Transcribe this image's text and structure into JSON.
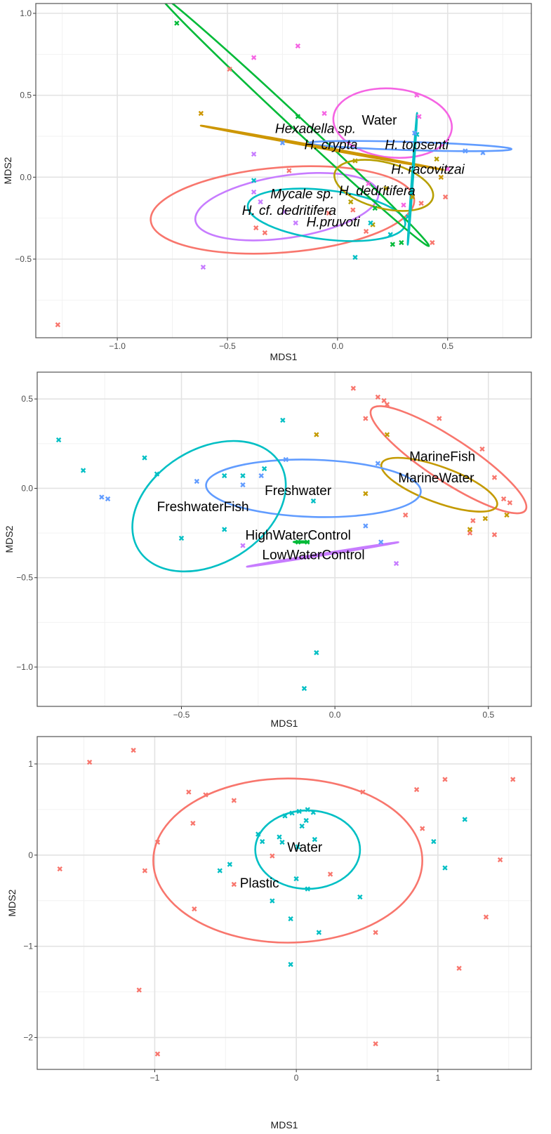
{
  "colors": {
    "panel_border": "#555555",
    "grid_major": "#e3e3e3",
    "grid_minor": "#f2f2f2",
    "red": "#F8766D",
    "olive": "#B79F00",
    "mustard": "#C49A00",
    "green": "#00BA38",
    "teal": "#00BFC4",
    "blue": "#619CFF",
    "purple": "#C77CFF",
    "pink": "#F564E3",
    "orange": "#CD9600"
  },
  "marker_glyph": "✖",
  "chart_data": [
    {
      "type": "scatter",
      "xlabel": "MDS1",
      "ylabel": "MDS2",
      "xlim": [
        -1.37,
        0.88
      ],
      "ylim": [
        -0.98,
        1.06
      ],
      "xticks": [
        -1.0,
        -0.5,
        0.0,
        0.5
      ],
      "xtick_labels": [
        "−1.0",
        "−0.5",
        "0.0",
        "0.5"
      ],
      "yticks": [
        -0.5,
        0.0,
        0.5,
        1.0
      ],
      "ytick_labels": [
        "−0.5",
        "0.0",
        "0.5",
        "1.0"
      ],
      "grid": true,
      "labels": [
        {
          "text": "Water",
          "x": 0.19,
          "y": 0.35,
          "italic": false
        },
        {
          "text": "Hexadella sp.",
          "x": -0.1,
          "y": 0.3,
          "italic": true
        },
        {
          "text": "H. crypta",
          "x": -0.03,
          "y": 0.2,
          "italic": true
        },
        {
          "text": "H. topsenti",
          "x": 0.36,
          "y": 0.2,
          "italic": true
        },
        {
          "text": "H. racovitzai",
          "x": 0.41,
          "y": 0.05,
          "italic": true
        },
        {
          "text": "H. dedritifera",
          "x": 0.18,
          "y": -0.08,
          "italic": true
        },
        {
          "text": "Mycale sp.",
          "x": -0.16,
          "y": -0.1,
          "italic": true
        },
        {
          "text": "H. cf. dedritifera",
          "x": -0.22,
          "y": -0.2,
          "italic": true
        },
        {
          "text": "H.pruvoti",
          "x": -0.02,
          "y": -0.27,
          "italic": true
        }
      ],
      "ellipses": [
        {
          "color": "red",
          "cx": -0.25,
          "cy": -0.2,
          "rx": 0.6,
          "ry": 0.26,
          "angle": 0.08
        },
        {
          "color": "purple",
          "cx": -0.23,
          "cy": -0.18,
          "rx": 0.42,
          "ry": 0.19,
          "angle": 0.15
        },
        {
          "color": "teal",
          "cx": -0.05,
          "cy": -0.23,
          "rx": 0.36,
          "ry": 0.15,
          "angle": -0.12
        },
        {
          "color": "green",
          "cx": -0.2,
          "cy": 0.35,
          "rx": 0.84,
          "ry": 0.038,
          "angle": -0.75
        },
        {
          "color": "olive",
          "cx": 0.21,
          "cy": -0.05,
          "rx": 0.23,
          "ry": 0.14,
          "angle": -0.25
        },
        {
          "color": "pink",
          "cx": 0.25,
          "cy": 0.33,
          "rx": 0.27,
          "ry": 0.21,
          "angle": -0.1
        },
        {
          "color": "blue",
          "cx": 0.33,
          "cy": 0.19,
          "rx": 0.46,
          "ry": 0.025,
          "angle": -0.03
        },
        {
          "color": "orange",
          "cx": -0.07,
          "cy": 0.18,
          "rx": 0.56,
          "ry": 0.005,
          "angle": -0.18
        },
        {
          "color": "teal",
          "cx": 0.34,
          "cy": -0.01,
          "rx": 0.3,
          "ry": 0.004,
          "angle": 1.5
        }
      ],
      "series": [
        {
          "color": "red",
          "x": [
            -1.27,
            -0.49,
            -0.22,
            -0.33,
            -0.37,
            -0.04,
            0.43,
            0.49,
            0.38,
            0.13,
            0.07
          ],
          "y": [
            -0.9,
            0.66,
            0.04,
            -0.34,
            -0.31,
            -0.22,
            -0.4,
            -0.12,
            -0.16,
            -0.33,
            -0.2
          ]
        },
        {
          "color": "olive",
          "x": [
            0.45,
            0.34,
            0.22,
            0.08,
            0.06,
            0.16
          ],
          "y": [
            0.11,
            -0.12,
            -0.07,
            0.1,
            -0.15,
            -0.29
          ]
        },
        {
          "color": "orange",
          "x": [
            -0.62,
            0.47
          ],
          "y": [
            0.39,
            0.0
          ]
        },
        {
          "color": "green",
          "x": [
            -0.73,
            -0.18,
            0.25,
            0.29,
            0.17
          ],
          "y": [
            0.94,
            0.37,
            -0.41,
            -0.4,
            -0.19
          ]
        },
        {
          "color": "teal",
          "x": [
            -0.38,
            0.08,
            0.32,
            0.36,
            0.24,
            0.15
          ],
          "y": [
            -0.02,
            -0.49,
            -0.24,
            0.26,
            -0.35,
            -0.28
          ]
        },
        {
          "color": "blue",
          "x": [
            -0.25,
            0.58,
            0.66,
            0.35
          ],
          "y": [
            0.21,
            0.16,
            0.15,
            0.27
          ]
        },
        {
          "color": "purple",
          "x": [
            -0.61,
            -0.38,
            -0.38,
            -0.35,
            -0.24,
            -0.19
          ],
          "y": [
            -0.55,
            0.14,
            -0.09,
            -0.15,
            -0.21,
            -0.28
          ]
        },
        {
          "color": "pink",
          "x": [
            -0.38,
            -0.18,
            -0.06,
            0.36,
            0.37,
            0.5,
            0.3,
            0.14
          ],
          "y": [
            0.73,
            0.8,
            0.39,
            0.5,
            0.37,
            0.05,
            -0.17,
            -0.04
          ]
        }
      ]
    },
    {
      "type": "scatter",
      "xlabel": "MDS1",
      "ylabel": "MDS2",
      "xlim": [
        -0.97,
        0.64
      ],
      "ylim": [
        -1.22,
        0.65
      ],
      "xticks": [
        -0.5,
        0.0,
        0.5
      ],
      "xtick_labels": [
        "−0.5",
        "0.0",
        "0.5"
      ],
      "yticks": [
        -1.0,
        -0.5,
        0.0,
        0.5
      ],
      "ytick_labels": [
        "−1.0",
        "−0.5",
        "0.0",
        "0.5"
      ],
      "grid": true,
      "labels": [
        {
          "text": "MarineFish",
          "x": 0.35,
          "y": 0.18,
          "italic": false
        },
        {
          "text": "MarineWater",
          "x": 0.33,
          "y": 0.06,
          "italic": false
        },
        {
          "text": "Freshwater",
          "x": -0.12,
          "y": -0.01,
          "italic": false
        },
        {
          "text": "FreshwaterFish",
          "x": -0.43,
          "y": -0.1,
          "italic": false
        },
        {
          "text": "HighWaterControl",
          "x": -0.12,
          "y": -0.26,
          "italic": false
        },
        {
          "text": "LowWaterControl",
          "x": -0.07,
          "y": -0.37,
          "italic": false
        }
      ],
      "ellipses": [
        {
          "color": "red",
          "cx": 0.37,
          "cy": 0.16,
          "rx": 0.3,
          "ry": 0.12,
          "angle": -0.58
        },
        {
          "color": "mustard",
          "cx": 0.34,
          "cy": 0.02,
          "rx": 0.2,
          "ry": 0.1,
          "angle": -0.35
        },
        {
          "color": "blue",
          "cx": -0.07,
          "cy": 0.0,
          "rx": 0.35,
          "ry": 0.16,
          "angle": -0.03
        },
        {
          "color": "teal",
          "cx": -0.41,
          "cy": -0.1,
          "rx": 0.27,
          "ry": 0.32,
          "angle": 0.55
        },
        {
          "color": "purple",
          "cx": -0.04,
          "cy": -0.37,
          "rx": 0.25,
          "ry": 0.005,
          "angle": 0.16
        },
        {
          "color": "green",
          "cx": -0.11,
          "cy": -0.3,
          "rx": 0.025,
          "ry": 0.004,
          "angle": 0.0
        }
      ],
      "series": [
        {
          "color": "red",
          "x": [
            0.06,
            0.1,
            0.14,
            0.16,
            0.17,
            0.34,
            0.48,
            0.52,
            0.55,
            0.57,
            0.52,
            0.44,
            0.45,
            0.23
          ],
          "y": [
            0.56,
            0.39,
            0.51,
            0.49,
            0.47,
            0.39,
            0.22,
            0.06,
            -0.06,
            -0.08,
            -0.26,
            -0.25,
            -0.18,
            -0.15
          ]
        },
        {
          "color": "mustard",
          "x": [
            0.17,
            -0.06,
            0.1,
            0.44,
            0.49,
            0.56
          ],
          "y": [
            0.3,
            0.3,
            -0.03,
            -0.23,
            -0.17,
            -0.15
          ]
        },
        {
          "color": "teal",
          "x": [
            -0.9,
            -0.82,
            -0.62,
            -0.58,
            -0.5,
            -0.36,
            -0.36,
            -0.07,
            -0.06,
            -0.1,
            -0.17,
            -0.23,
            -0.3
          ],
          "y": [
            0.27,
            0.1,
            0.17,
            0.08,
            -0.28,
            -0.23,
            0.07,
            -0.07,
            -0.92,
            -1.12,
            0.38,
            0.11,
            0.07
          ]
        },
        {
          "color": "blue",
          "x": [
            -0.76,
            -0.74,
            -0.45,
            -0.3,
            -0.24,
            -0.16,
            0.1,
            0.14,
            0.15
          ],
          "y": [
            -0.05,
            -0.06,
            0.04,
            0.02,
            0.07,
            0.16,
            -0.21,
            0.14,
            -0.3
          ]
        },
        {
          "color": "purple",
          "x": [
            -0.3,
            0.2
          ],
          "y": [
            -0.32,
            -0.42
          ]
        },
        {
          "color": "green",
          "x": [
            -0.12,
            -0.09
          ],
          "y": [
            -0.3,
            -0.3
          ]
        }
      ]
    },
    {
      "type": "scatter",
      "xlabel": "MDS1",
      "ylabel": "MDS2",
      "xlim": [
        -1.83,
        1.66
      ],
      "ylim": [
        -2.35,
        1.3
      ],
      "xticks": [
        -1,
        0,
        1
      ],
      "xtick_labels": [
        "−1",
        "0",
        "1"
      ],
      "yticks": [
        -2,
        -1,
        0,
        1
      ],
      "ytick_labels": [
        "−2",
        "−1",
        "0",
        "1"
      ],
      "grid": true,
      "labels": [
        {
          "text": "Water",
          "x": 0.06,
          "y": 0.09,
          "italic": false
        },
        {
          "text": "Plastic",
          "x": -0.26,
          "y": -0.3,
          "italic": false
        }
      ],
      "ellipses": [
        {
          "color": "red",
          "cx": -0.06,
          "cy": -0.06,
          "rx": 0.95,
          "ry": 0.9,
          "angle": 0.0
        },
        {
          "color": "teal",
          "cx": 0.08,
          "cy": 0.06,
          "rx": 0.37,
          "ry": 0.43,
          "angle": 0.0
        }
      ],
      "series": [
        {
          "color": "red",
          "x": [
            -1.67,
            -1.46,
            -1.15,
            -0.76,
            -0.64,
            -0.44,
            -0.73,
            -0.98,
            -1.07,
            -0.72,
            -0.44,
            -0.17,
            0.24,
            0.47,
            0.85,
            0.89,
            1.05,
            1.53,
            0.56,
            1.44,
            1.34,
            1.15,
            0.56,
            -1.11,
            -0.98
          ],
          "y": [
            -0.15,
            1.02,
            1.15,
            0.69,
            0.66,
            0.6,
            0.35,
            0.14,
            -0.17,
            -0.59,
            -0.32,
            -0.01,
            -0.21,
            0.69,
            0.72,
            0.29,
            0.83,
            0.83,
            -0.85,
            -0.05,
            -0.68,
            -1.24,
            -2.07,
            -1.48,
            -2.18
          ]
        },
        {
          "color": "teal",
          "x": [
            -0.08,
            -0.03,
            0.02,
            0.08,
            0.12,
            0.07,
            0.04,
            -0.12,
            -0.24,
            -0.27,
            -0.1,
            0.01,
            0.13,
            -0.47,
            -0.54,
            -0.17,
            -0.04,
            0.0,
            0.08,
            0.45,
            0.16,
            0.97,
            1.05,
            1.19,
            -0.04
          ],
          "y": [
            0.43,
            0.46,
            0.48,
            0.5,
            0.47,
            0.38,
            0.32,
            0.2,
            0.15,
            0.23,
            0.14,
            0.09,
            0.17,
            -0.1,
            -0.17,
            -0.5,
            -0.7,
            -0.26,
            -0.37,
            -0.46,
            -0.85,
            0.15,
            -0.14,
            0.39,
            -1.2
          ]
        }
      ]
    }
  ]
}
